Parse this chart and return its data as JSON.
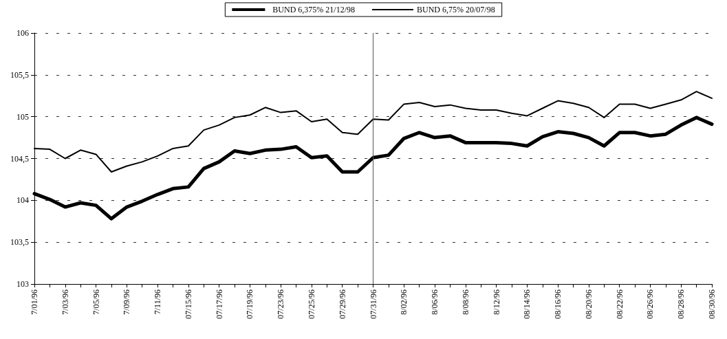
{
  "chart_data": {
    "type": "line",
    "categories": [
      "7/01/96",
      null,
      "7/03/96",
      null,
      "7/05/96",
      null,
      "7/09/96",
      null,
      "7/11/96",
      null,
      "07/15/96",
      null,
      "07/17/96",
      null,
      "07/19/96",
      null,
      "07/23/96",
      null,
      "07/25/96",
      null,
      "07/29/96",
      null,
      "07/31/96",
      null,
      "8/02/96",
      null,
      "8/06/96",
      null,
      "8/08/96",
      null,
      "8/12/96",
      null,
      "08/14/96",
      null,
      "08/16/96",
      null,
      "08/20/96",
      null,
      "08/22/96",
      null,
      "08/26/96",
      null,
      "08/28/96",
      null,
      "08/30/96"
    ],
    "series": [
      {
        "name": "BUND 6,375% 21/12/98",
        "color": "#000000",
        "values": [
          104.08,
          104.01,
          103.92,
          103.97,
          103.94,
          103.78,
          103.92,
          103.99,
          104.07,
          104.14,
          104.16,
          104.38,
          104.46,
          104.59,
          104.56,
          104.6,
          104.61,
          104.64,
          104.51,
          104.53,
          104.34,
          104.34,
          104.51,
          104.54,
          104.74,
          104.81,
          104.75,
          104.77,
          104.69,
          104.69,
          104.69,
          104.68,
          104.65,
          104.76,
          104.82,
          104.8,
          104.75,
          104.65,
          104.81,
          104.81,
          104.77,
          104.79,
          104.9,
          104.99,
          104.91
        ]
      },
      {
        "name": "BUND 6,75% 20/07/98",
        "color": "#000000",
        "values": [
          104.62,
          104.61,
          104.5,
          104.6,
          104.55,
          104.34,
          104.41,
          104.46,
          104.53,
          104.62,
          104.65,
          104.84,
          104.9,
          104.99,
          105.02,
          105.11,
          105.05,
          105.07,
          104.94,
          104.97,
          104.81,
          104.79,
          104.97,
          104.96,
          105.15,
          105.17,
          105.12,
          105.14,
          105.1,
          105.08,
          105.08,
          105.04,
          105.01,
          105.1,
          105.19,
          105.16,
          105.11,
          104.99,
          105.15,
          105.15,
          105.1,
          105.15,
          105.2,
          105.3,
          105.22
        ]
      }
    ],
    "ylim": [
      103,
      106
    ],
    "yticks": [
      103,
      {
        "value": 103.5,
        "label": "103,5"
      },
      104,
      {
        "value": 104.5,
        "label": "104,5"
      },
      105,
      {
        "value": 105.5,
        "label": "105,5"
      },
      106
    ],
    "ref_lines": [
      {
        "axis": "x",
        "value": "07/31/96",
        "color": "#555555"
      }
    ],
    "grid": "y",
    "legend": "top",
    "marker": "none",
    "line_style": "solid"
  }
}
